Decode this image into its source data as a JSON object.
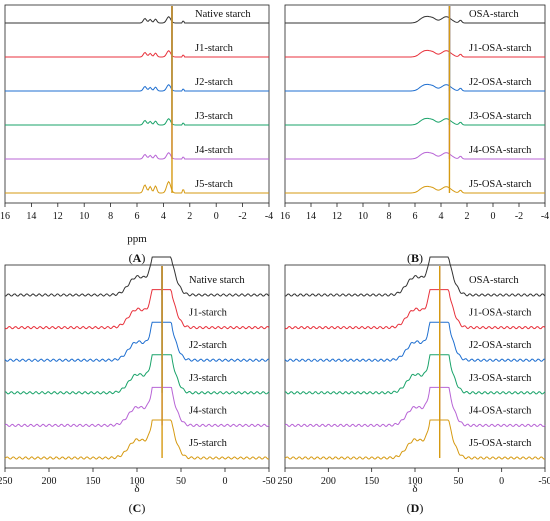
{
  "chart_data": [
    {
      "panel": "(A)",
      "type": "line",
      "xlabel": "ppm",
      "xlim": [
        16,
        -4
      ],
      "xticks": [
        "16",
        "14",
        "12",
        "10",
        "8",
        "6",
        "4",
        "2",
        "0",
        "-2",
        "-4"
      ],
      "series": [
        {
          "name": "Native starch",
          "color": "#333333"
        },
        {
          "name": "J1-starch",
          "color": "#e8323c"
        },
        {
          "name": "J2-starch",
          "color": "#1f6fd0"
        },
        {
          "name": "J3-starch",
          "color": "#1aa36a"
        },
        {
          "name": "J4-starch",
          "color": "#b865d6"
        },
        {
          "name": "J5-starch",
          "color": "#d69a12"
        }
      ]
    },
    {
      "panel": "(B)",
      "type": "line",
      "xlabel": "",
      "xlim": [
        16,
        -4
      ],
      "xticks": [
        "16",
        "14",
        "12",
        "10",
        "8",
        "6",
        "4",
        "2",
        "0",
        "-2",
        "-4"
      ],
      "series": [
        {
          "name": "OSA-starch",
          "color": "#333333"
        },
        {
          "name": "J1-OSA-starch",
          "color": "#e8323c"
        },
        {
          "name": "J2-OSA-starch",
          "color": "#1f6fd0"
        },
        {
          "name": "J3-OSA-starch",
          "color": "#1aa36a"
        },
        {
          "name": "J4-OSA-starch",
          "color": "#b865d6"
        },
        {
          "name": "J5-OSA-starch",
          "color": "#d69a12"
        }
      ]
    },
    {
      "panel": "(C)",
      "type": "line",
      "xlabel": "δ",
      "xlim": [
        250,
        -50
      ],
      "xticks": [
        "250",
        "200",
        "150",
        "100",
        "50",
        "0",
        "-50"
      ],
      "series": [
        {
          "name": "Native starch",
          "color": "#333333"
        },
        {
          "name": "J1-starch",
          "color": "#e8323c"
        },
        {
          "name": "J2-starch",
          "color": "#1f6fd0"
        },
        {
          "name": "J3-starch",
          "color": "#1aa36a"
        },
        {
          "name": "J4-starch",
          "color": "#b865d6"
        },
        {
          "name": "J5-starch",
          "color": "#d69a12"
        }
      ]
    },
    {
      "panel": "(D)",
      "type": "line",
      "xlabel": "δ",
      "xlim": [
        250,
        -50
      ],
      "xticks": [
        "250",
        "200",
        "150",
        "100",
        "50",
        "0",
        "-50"
      ],
      "series": [
        {
          "name": "OSA-starch",
          "color": "#333333"
        },
        {
          "name": "J1-OSA-starch",
          "color": "#e8323c"
        },
        {
          "name": "J2-OSA-starch",
          "color": "#1f6fd0"
        },
        {
          "name": "J3-OSA-starch",
          "color": "#1aa36a"
        },
        {
          "name": "J4-OSA-starch",
          "color": "#b865d6"
        },
        {
          "name": "J5-OSA-starch",
          "color": "#d69a12"
        }
      ]
    }
  ]
}
